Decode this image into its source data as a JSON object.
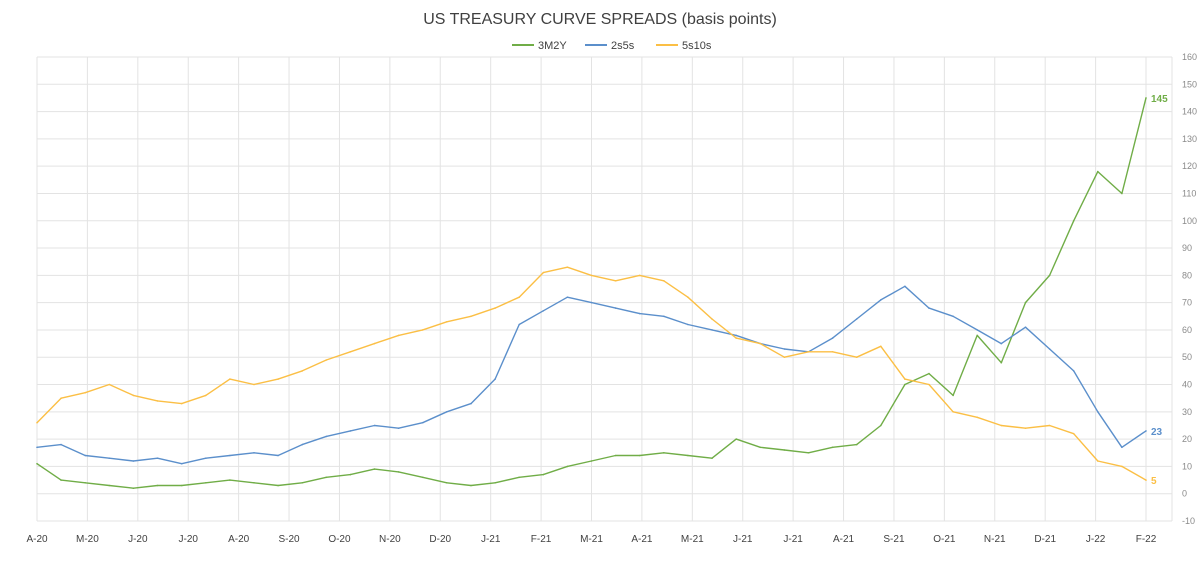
{
  "chart_data": {
    "type": "line",
    "title": "US TREASURY CURVE SPREADS (basis points)",
    "xlabel": "",
    "ylabel": "",
    "ylim": [
      -10,
      160
    ],
    "y_ticks": [
      -10,
      0,
      10,
      20,
      30,
      40,
      50,
      60,
      70,
      80,
      90,
      100,
      110,
      120,
      130,
      140,
      150,
      160
    ],
    "grid": true,
    "legend_position": "top",
    "x_tick_labels": [
      "A-20",
      "M-20",
      "J-20",
      "J-20",
      "A-20",
      "S-20",
      "O-20",
      "N-20",
      "D-20",
      "J-21",
      "F-21",
      "M-21",
      "A-21",
      "M-21",
      "J-21",
      "J-21",
      "A-21",
      "S-21",
      "O-21",
      "N-21",
      "D-21",
      "J-22",
      "F-22"
    ],
    "x": [
      "2020-04",
      "2020-04",
      "2020-05",
      "2020-05",
      "2020-06",
      "2020-06",
      "2020-07",
      "2020-07",
      "2020-08",
      "2020-08",
      "2020-09",
      "2020-09",
      "2020-10",
      "2020-10",
      "2020-11",
      "2020-11",
      "2020-12",
      "2020-12",
      "2021-01",
      "2021-01",
      "2021-02",
      "2021-02",
      "2021-03",
      "2021-03",
      "2021-04",
      "2021-04",
      "2021-05",
      "2021-05",
      "2021-06",
      "2021-06",
      "2021-07",
      "2021-07",
      "2021-08",
      "2021-08",
      "2021-09",
      "2021-09",
      "2021-10",
      "2021-10",
      "2021-11",
      "2021-11",
      "2021-12",
      "2021-12",
      "2022-01",
      "2022-01",
      "2022-02",
      "2022-02",
      "2022-03"
    ],
    "series": [
      {
        "name": "3M2Y",
        "color": "#70ad47",
        "end_label": "145",
        "values": [
          11,
          5,
          4,
          3,
          2,
          3,
          3,
          4,
          5,
          4,
          3,
          4,
          6,
          7,
          9,
          8,
          6,
          4,
          3,
          4,
          6,
          7,
          10,
          12,
          14,
          14,
          15,
          14,
          13,
          20,
          17,
          16,
          15,
          17,
          18,
          25,
          40,
          44,
          36,
          58,
          48,
          70,
          80,
          100,
          118,
          110,
          145
        ]
      },
      {
        "name": "2s5s",
        "color": "#5b8fcb",
        "end_label": "23",
        "values": [
          17,
          18,
          14,
          13,
          12,
          13,
          11,
          13,
          14,
          15,
          14,
          18,
          21,
          23,
          25,
          24,
          26,
          30,
          33,
          42,
          62,
          67,
          72,
          70,
          68,
          66,
          65,
          62,
          60,
          58,
          55,
          53,
          52,
          57,
          64,
          71,
          76,
          68,
          65,
          60,
          55,
          61,
          53,
          45,
          30,
          17,
          23
        ]
      },
      {
        "name": "5s10s",
        "color": "#fbbf45",
        "end_label": "5",
        "values": [
          26,
          35,
          37,
          40,
          36,
          34,
          33,
          36,
          42,
          40,
          42,
          45,
          49,
          52,
          55,
          58,
          60,
          63,
          65,
          68,
          72,
          81,
          83,
          80,
          78,
          80,
          78,
          72,
          64,
          57,
          55,
          50,
          52,
          52,
          50,
          54,
          42,
          40,
          30,
          28,
          25,
          24,
          25,
          22,
          12,
          10,
          5
        ]
      }
    ]
  }
}
